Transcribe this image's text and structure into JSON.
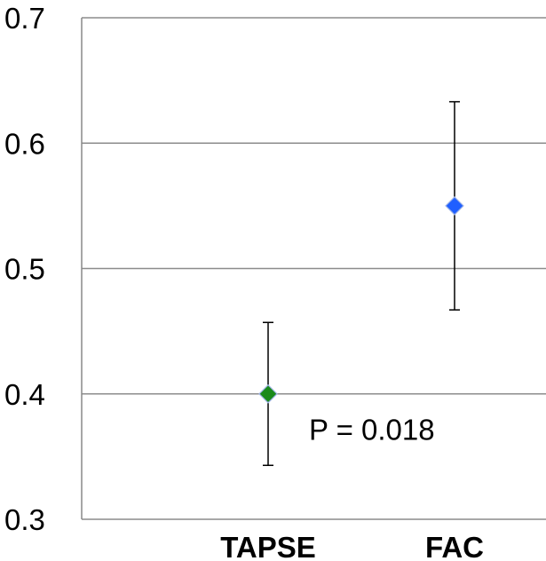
{
  "chart_data": {
    "type": "scatter",
    "title": "",
    "xlabel": "",
    "ylabel": "",
    "ylim": [
      0.3,
      0.7
    ],
    "yticks": [
      "0.3",
      "0.4",
      "0.5",
      "0.6",
      "0.7"
    ],
    "grid": "horizontal",
    "legend": "none",
    "categories": [
      "TAPSE",
      "FAC"
    ],
    "points": [
      {
        "category": "TAPSE",
        "value": 0.4,
        "error_low": 0.343,
        "error_high": 0.457,
        "color": "#1a8a1a"
      },
      {
        "category": "FAC",
        "value": 0.55,
        "error_low": 0.467,
        "error_high": 0.633,
        "color": "#1f5fff"
      }
    ],
    "annotations": [
      {
        "text": "P = 0.018",
        "x_category": "TAPSE",
        "y": 0.372
      }
    ]
  }
}
